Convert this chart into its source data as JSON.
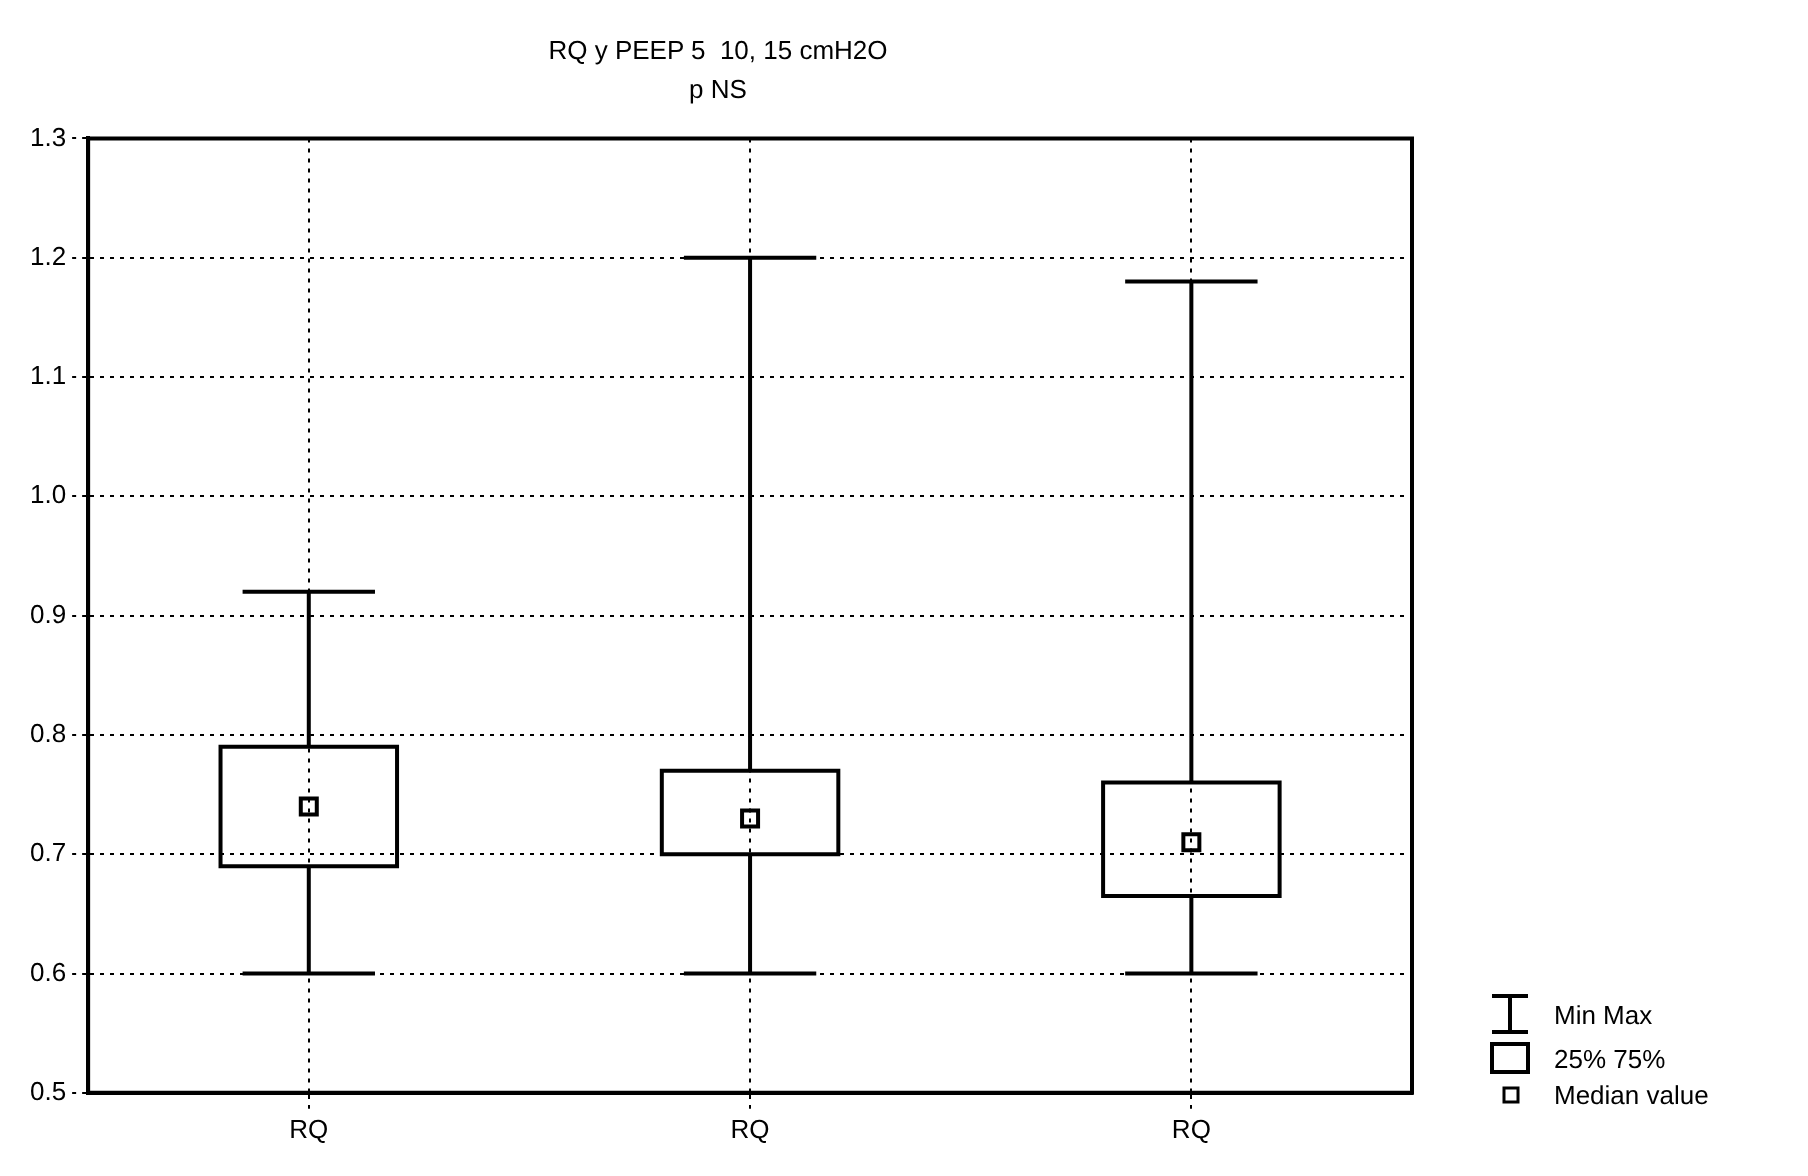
{
  "chart_data": {
    "type": "box",
    "title": "RQ y PEEP 5  10, 15 cmH2O",
    "subtitle": "p NS",
    "categories": [
      "RQ",
      "RQ",
      "RQ"
    ],
    "boxes": [
      {
        "low": 0.6,
        "q1": 0.69,
        "median": 0.74,
        "q3": 0.79,
        "high": 0.92
      },
      {
        "low": 0.6,
        "q1": 0.7,
        "median": 0.73,
        "q3": 0.77,
        "high": 1.2
      },
      {
        "low": 0.6,
        "q1": 0.665,
        "median": 0.71,
        "q3": 0.76,
        "high": 1.18
      }
    ],
    "color": "#000000",
    "marker": "square",
    "grid": true,
    "line_style": "dotted",
    "ylim": [
      0.5,
      1.3
    ],
    "yticks": [
      0.5,
      0.6,
      0.7,
      0.8,
      0.9,
      {
        "value": 1.0,
        "label": "1.0"
      },
      1.1,
      1.2,
      1.3
    ],
    "annotations": [
      "Min Max",
      "25% 75%",
      "Median value"
    ]
  }
}
